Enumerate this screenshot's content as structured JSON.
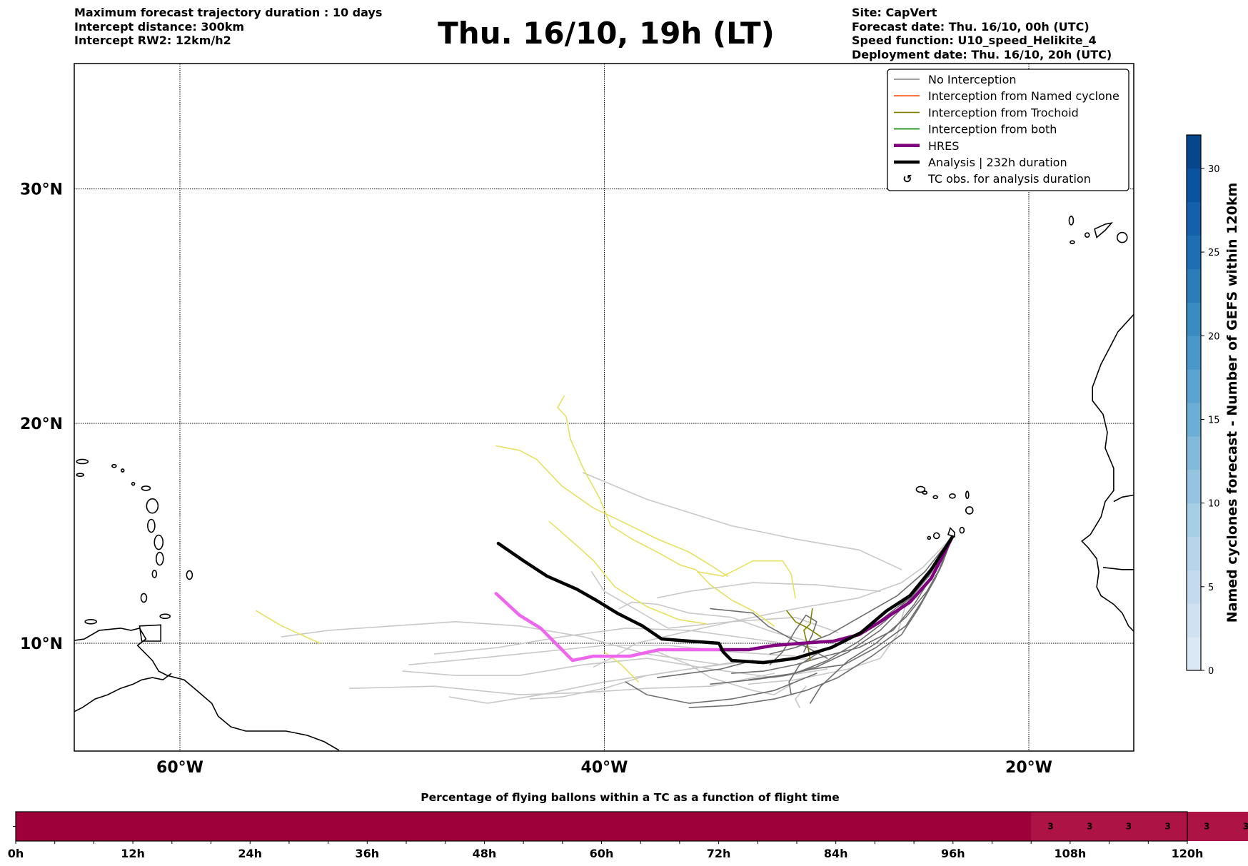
{
  "header": {
    "left_lines": [
      "Maximum forecast trajectory duration : 10 days",
      "Intercept distance: 300km",
      "Intercept RW2: 12km/h2"
    ],
    "title": "Thu. 16/10, 19h (LT)",
    "right_lines": [
      "Site: CapVert",
      "Forecast date: Thu. 16/10, 00h (UTC)",
      "Speed function: U10_speed_Helikite_4",
      "Deployment date: Thu. 16/10, 20h (UTC)"
    ]
  },
  "map": {
    "lon_range": [
      -65,
      -15
    ],
    "lat_range": [
      5,
      34.6
    ],
    "lon_ticks": [
      {
        "value": -60,
        "label": "60°W"
      },
      {
        "value": -40,
        "label": "40°W"
      },
      {
        "value": -20,
        "label": "20°W"
      }
    ],
    "lat_ticks": [
      {
        "value": 30,
        "label": "30°N"
      },
      {
        "value": 20,
        "label": "20°N"
      },
      {
        "value": 10,
        "label": "10°N"
      }
    ]
  },
  "legend": {
    "items": [
      {
        "label": "No Interception",
        "color": "#808080",
        "style": "thin"
      },
      {
        "label": "Interception from Named cyclone",
        "color": "#ff4500",
        "style": "thin"
      },
      {
        "label": "Interception from Trochoid",
        "color": "#808000",
        "style": "thin"
      },
      {
        "label": "Interception from both",
        "color": "#008000",
        "style": "thin"
      },
      {
        "label": "HRES",
        "color": "#800080",
        "style": "thick"
      },
      {
        "label": "Analysis | 232h duration",
        "color": "#000000",
        "style": "thick"
      },
      {
        "label": "TC obs. for analysis duration",
        "color": "#000000",
        "style": "marker"
      }
    ]
  },
  "colorbar": {
    "label": "Named cyclones forecast - Number of GEFS within 120km",
    "min": 0,
    "max": 32,
    "step": 2,
    "ticks": [
      "0",
      "5",
      "10",
      "15",
      "20",
      "25",
      "30"
    ],
    "colors": [
      "#dae8f5",
      "#d0e1f2",
      "#c4daee",
      "#b7d4ea",
      "#a6cee4",
      "#94c4df",
      "#81badb",
      "#6caed6",
      "#5ba3d0",
      "#4a98c9",
      "#3a8bc2",
      "#2c7cba",
      "#1f6eb3",
      "#1561a9",
      "#0a539e",
      "#08468b"
    ]
  },
  "bottom_bar": {
    "title": "Percentage of flying ballons within a TC as a function of flight time",
    "ticks": [
      "0h",
      "12h",
      "24h",
      "36h",
      "48h",
      "60h",
      "72h",
      "84h",
      "96h",
      "108h",
      "120h"
    ],
    "cell_hours": 4,
    "cells": [
      0,
      0,
      0,
      0,
      0,
      0,
      0,
      0,
      0,
      0,
      0,
      0,
      0,
      0,
      0,
      0,
      0,
      0,
      0,
      0,
      0,
      0,
      0,
      0,
      0,
      0,
      3,
      3,
      3,
      3,
      3,
      3
    ],
    "max_hours": 120,
    "colors": {
      "zero": "#9e003a",
      "nonzero": "#ad1345"
    }
  },
  "chart_data": {
    "type": "line",
    "title": "Thu. 16/10, 19h (LT)",
    "xlabel": "Longitude",
    "ylabel": "Latitude",
    "xlim": [
      -65,
      -15
    ],
    "ylim": [
      5,
      34.6
    ],
    "x_ticks": [
      "60°W",
      "40°W",
      "20°W"
    ],
    "y_ticks": [
      "10°N",
      "20°N",
      "30°N"
    ],
    "grid": true,
    "legend_position": "top-right",
    "launch_site": {
      "lon": -23.6,
      "lat": 14.9,
      "name": "CapVert"
    },
    "series": [
      {
        "name": "Analysis | 232h duration",
        "color": "#000000",
        "points": [
          [
            -23.6,
            14.9
          ],
          [
            -24.6,
            13.4
          ],
          [
            -25.6,
            12.2
          ],
          [
            -26.7,
            11.5
          ],
          [
            -27.9,
            10.5
          ],
          [
            -29.3,
            9.8
          ],
          [
            -31.0,
            9.3
          ],
          [
            -32.5,
            9.1
          ],
          [
            -34.0,
            9.2
          ],
          [
            -34.4,
            9.6
          ],
          [
            -34.6,
            10.0
          ],
          [
            -36.0,
            10.1
          ],
          [
            -37.3,
            10.2
          ],
          [
            -38.2,
            10.8
          ],
          [
            -39.4,
            11.4
          ],
          [
            -40.4,
            12.0
          ],
          [
            -41.3,
            12.5
          ],
          [
            -42.7,
            13.1
          ],
          [
            -43.8,
            13.8
          ],
          [
            -45.0,
            14.6
          ]
        ]
      },
      {
        "name": "HRES",
        "color": "#800080",
        "points": [
          [
            -23.6,
            14.9
          ],
          [
            -24.6,
            13.0
          ],
          [
            -25.6,
            11.9
          ],
          [
            -27.0,
            11.0
          ],
          [
            -28.0,
            10.4
          ],
          [
            -29.2,
            10.1
          ],
          [
            -30.7,
            10.0
          ],
          [
            -32.0,
            9.9
          ],
          [
            -33.2,
            9.7
          ],
          [
            -34.5,
            9.7
          ]
        ]
      },
      {
        "name": "HRES (extended)",
        "color": "#ee66ee",
        "points": [
          [
            -34.5,
            9.7
          ],
          [
            -36.0,
            9.7
          ],
          [
            -37.4,
            9.7
          ],
          [
            -38.8,
            9.4
          ],
          [
            -40.5,
            9.4
          ],
          [
            -41.5,
            9.2
          ],
          [
            -42.2,
            9.9
          ],
          [
            -43.0,
            10.7
          ],
          [
            -44.0,
            11.3
          ],
          [
            -45.1,
            12.3
          ]
        ]
      },
      {
        "name": "Interception from Trochoid",
        "color": "#808000",
        "points": [
          [
            -30.2,
            11.6
          ],
          [
            -30.3,
            10.9
          ],
          [
            -30.6,
            10.6
          ],
          [
            -30.4,
            9.8
          ],
          [
            -30.3,
            9.2
          ]
        ]
      },
      {
        "name": "No Interception (sample)",
        "color": "#808080",
        "points": [
          [
            -23.6,
            14.9
          ],
          [
            -25,
            13
          ],
          [
            -27,
            11
          ],
          [
            -29,
            9.6
          ],
          [
            -31,
            8.6
          ],
          [
            -33,
            8.2
          ],
          [
            -35,
            7.9
          ],
          [
            -37,
            7.6
          ]
        ]
      },
      {
        "name": "Trochoid-yellow (sample)",
        "color": "#e8e060",
        "points": [
          [
            -38.5,
            8.4
          ],
          [
            -39.2,
            9.4
          ],
          [
            -40.0,
            10.8
          ],
          [
            -40.6,
            11.4
          ],
          [
            -41.2,
            12.0
          ],
          [
            -42.6,
            13.6
          ],
          [
            -44.0,
            15.5
          ]
        ]
      }
    ]
  }
}
